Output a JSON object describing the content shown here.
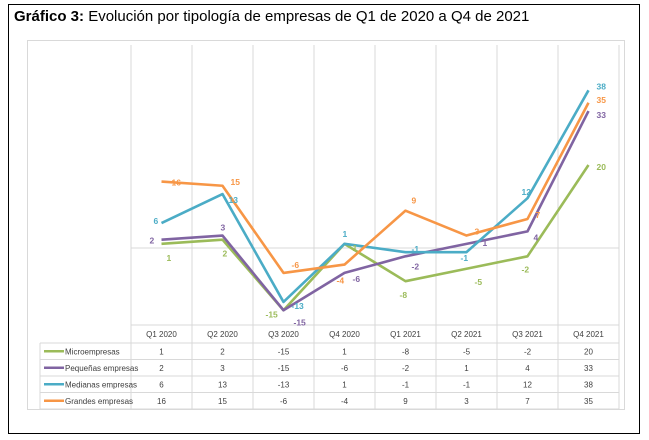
{
  "title": {
    "prefix": "Gráfico 3:",
    "text": "Evolución por tipología de empresas de Q1 de 2020 a Q4 de 2021"
  },
  "chart_data": {
    "type": "line",
    "title": "",
    "categories": [
      "Q1 2020",
      "Q2 2020",
      "Q3 2020",
      "Q4 2020",
      "Q1 2021",
      "Q2 2021",
      "Q3 2021",
      "Q4 2021"
    ],
    "series": [
      {
        "name": "Microempresas",
        "color": "#9BBB59",
        "values": [
          1,
          2,
          -15,
          1,
          -8,
          -5,
          -2,
          20
        ]
      },
      {
        "name": "Pequeñas empresas",
        "color": "#8064A2",
        "values": [
          2,
          3,
          -15,
          -6,
          -2,
          1,
          4,
          33
        ]
      },
      {
        "name": "Medianas empresas",
        "color": "#4BACC6",
        "values": [
          6,
          13,
          -13,
          1,
          -1,
          -1,
          12,
          38
        ]
      },
      {
        "name": "Grandes empresas",
        "color": "#F79646",
        "values": [
          16,
          15,
          -6,
          -4,
          9,
          3,
          7,
          35
        ]
      }
    ],
    "data_table": true,
    "grid": "vertical",
    "legend": "data-table"
  }
}
